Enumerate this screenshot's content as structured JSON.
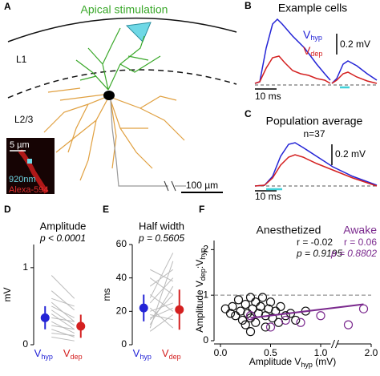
{
  "panel_a": {
    "letter": "A",
    "title": "Apical stimulation",
    "layers": [
      "L1",
      "L2/3"
    ],
    "inset_scale": "5 µm",
    "inset_labels": [
      "920nm",
      "Alexa-594"
    ],
    "scale_bar": "100 µm"
  },
  "panel_b": {
    "letter": "B",
    "title": "Example cells",
    "legend": [
      [
        {
          "t": "V"
        },
        {
          "t": "hyp",
          "sub": true
        }
      ],
      [
        {
          "t": "V"
        },
        {
          "t": "dep",
          "sub": true
        }
      ]
    ],
    "colors": [
      "#2424d6",
      "#d42020"
    ],
    "scale_y": "0.2 mV",
    "scale_x": "10 ms"
  },
  "panel_c": {
    "letter": "C",
    "title": "Population average",
    "n": "n=37",
    "scale_y": "0.2 mV",
    "scale_x": "10 ms"
  },
  "panel_d": {
    "letter": "D",
    "title": "Amplitude",
    "stat": "p < 0.0001",
    "ylabel": "mV",
    "ylim": [
      0,
      1.3
    ],
    "yticks": [
      0,
      1
    ],
    "categories": [
      [
        {
          "t": "V"
        },
        {
          "t": "hyp",
          "sub": true
        }
      ],
      [
        {
          "t": "V"
        },
        {
          "t": "dep",
          "sub": true
        }
      ]
    ],
    "colors": [
      "#2424d6",
      "#d42020"
    ],
    "means": [
      0.35,
      0.24
    ],
    "errors": [
      0.15,
      0.15
    ],
    "pairs": [
      [
        0.9,
        0.6
      ],
      [
        0.7,
        0.45
      ],
      [
        0.6,
        0.5
      ],
      [
        0.55,
        0.3
      ],
      [
        0.5,
        0.35
      ],
      [
        0.45,
        0.25
      ],
      [
        0.4,
        0.2
      ],
      [
        0.35,
        0.3
      ],
      [
        0.3,
        0.15
      ],
      [
        0.25,
        0.2
      ],
      [
        0.2,
        0.1
      ],
      [
        0.15,
        0.12
      ],
      [
        0.1,
        0.05
      ]
    ]
  },
  "panel_e": {
    "letter": "E",
    "title": "Half width",
    "stat": "p = 0.5605",
    "ylabel": "ms",
    "ylim": [
      0,
      60
    ],
    "yticks": [
      0,
      20,
      40,
      60
    ],
    "categories": [
      [
        {
          "t": "V"
        },
        {
          "t": "hyp",
          "sub": true
        }
      ],
      [
        {
          "t": "V"
        },
        {
          "t": "dep",
          "sub": true
        }
      ]
    ],
    "colors": [
      "#2424d6",
      "#d42020"
    ],
    "means": [
      22,
      21
    ],
    "errors": [
      8,
      12
    ],
    "pairs": [
      [
        15,
        30
      ],
      [
        25,
        40
      ],
      [
        10,
        50
      ],
      [
        30,
        20
      ],
      [
        20,
        25
      ],
      [
        35,
        45
      ],
      [
        18,
        15
      ],
      [
        12,
        35
      ],
      [
        28,
        55
      ],
      [
        40,
        30
      ],
      [
        22,
        10
      ],
      [
        16,
        22
      ],
      [
        45,
        38
      ],
      [
        8,
        18
      ]
    ]
  },
  "panel_f": {
    "letter": "F",
    "xlabel": [
      {
        "t": "Amplitude V"
      },
      {
        "t": "hyp",
        "sub": true
      },
      {
        "t": " (mV)"
      }
    ],
    "ylabel": [
      {
        "t": "Amplitude V"
      },
      {
        "t": "dep",
        "sub": true
      },
      {
        "t": ":V"
      },
      {
        "t": "hyp",
        "sub": true
      }
    ],
    "xlim": [
      0,
      2
    ],
    "axis_break": [
      1.1,
      1.6
    ],
    "xticks": [
      {
        "value": 0,
        "label": "0.0"
      },
      0.5,
      {
        "value": 1,
        "label": "1.0"
      },
      {
        "value": 2,
        "label": "2.0"
      }
    ],
    "ylim": [
      0,
      2.2
    ],
    "yticks": [
      0,
      1,
      2
    ],
    "reference_line": 1,
    "groups": [
      {
        "name": "Anesthetized",
        "color": "#111111",
        "r": "r = -0.02",
        "p": "p = 0.9195",
        "points": [
          [
            0.05,
            0.7
          ],
          [
            0.1,
            0.6
          ],
          [
            0.12,
            0.75
          ],
          [
            0.15,
            0.55
          ],
          [
            0.18,
            0.9
          ],
          [
            0.2,
            0.65
          ],
          [
            0.22,
            0.45
          ],
          [
            0.25,
            0.8
          ],
          [
            0.27,
            0.6
          ],
          [
            0.3,
            0.95
          ],
          [
            0.3,
            0.5
          ],
          [
            0.32,
            0.7
          ],
          [
            0.35,
            0.85
          ],
          [
            0.35,
            0.4
          ],
          [
            0.38,
            0.6
          ],
          [
            0.4,
            0.75
          ],
          [
            0.42,
            0.95
          ],
          [
            0.45,
            0.55
          ],
          [
            0.45,
            0.3
          ],
          [
            0.48,
            0.7
          ],
          [
            0.5,
            0.85
          ],
          [
            0.52,
            0.5
          ],
          [
            0.55,
            0.65
          ],
          [
            0.58,
            0.4
          ],
          [
            0.6,
            0.75
          ],
          [
            0.65,
            0.55
          ],
          [
            0.7,
            0.6
          ],
          [
            0.75,
            0.45
          ],
          [
            0.85,
            0.65
          ],
          [
            0.3,
            0.2
          ],
          [
            0.25,
            0.35
          ]
        ]
      },
      {
        "name": "Awake",
        "color": "#7b2a8e",
        "r": "r = 0.06",
        "p": "p = 0.8802",
        "points": [
          [
            0.3,
            0.55
          ],
          [
            0.5,
            0.3
          ],
          [
            0.65,
            0.45
          ],
          [
            0.8,
            0.4
          ],
          [
            1.0,
            0.55
          ],
          [
            1.7,
            0.35
          ],
          [
            1.9,
            0.7
          ]
        ],
        "fit": [
          [
            0.3,
            0.5
          ],
          [
            1.9,
            0.8
          ]
        ]
      }
    ]
  }
}
